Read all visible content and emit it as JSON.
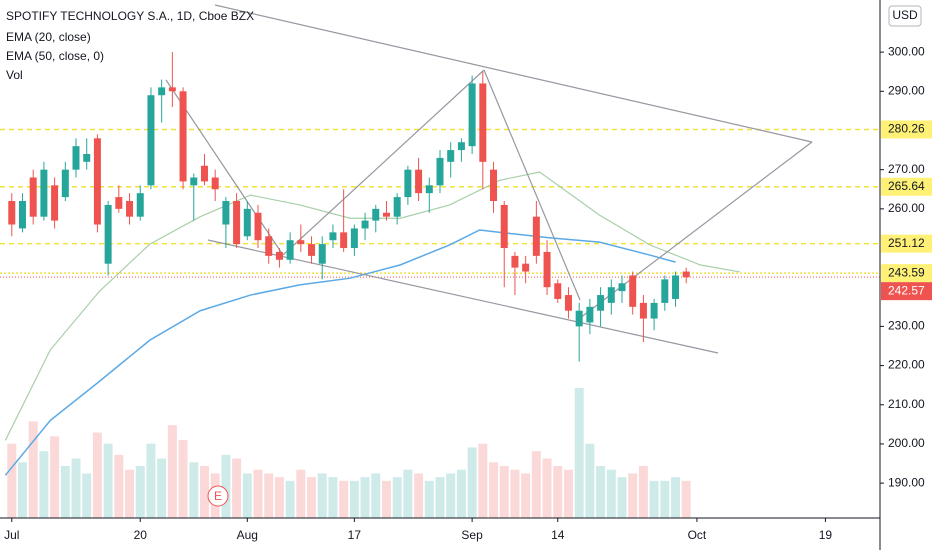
{
  "chart_data": {
    "type": "candlestick",
    "title": "SPOTIFY TECHNOLOGY S.A., 1D, Cboe BZX",
    "currency": "USD",
    "x": [
      0,
      1,
      2,
      3,
      4,
      5,
      6,
      7,
      8,
      9,
      10,
      11,
      12,
      13,
      14,
      15,
      16,
      17,
      18,
      19,
      20,
      21,
      22,
      23,
      24,
      25,
      26,
      27,
      28,
      29,
      30,
      31,
      32,
      33,
      34,
      35,
      36,
      37,
      38,
      39,
      40,
      41,
      42,
      43,
      44,
      45,
      46,
      47,
      48,
      49,
      50,
      51,
      52,
      53,
      54,
      55,
      56,
      57,
      58,
      59,
      60,
      61,
      62,
      63
    ],
    "open": [
      262,
      255,
      268,
      258,
      266,
      263,
      270,
      272,
      278,
      246,
      263,
      262,
      258,
      266,
      289,
      291,
      290,
      266,
      271,
      268,
      256,
      262,
      253,
      259,
      253,
      249,
      247,
      252,
      251,
      246,
      252,
      254,
      250,
      255,
      257,
      259,
      258,
      263,
      270,
      264,
      266,
      272,
      275,
      276,
      292,
      270,
      261,
      248,
      246,
      258,
      249,
      241,
      238,
      230,
      231,
      234,
      236,
      239,
      243,
      236,
      232,
      236,
      237,
      244
    ],
    "high": [
      264,
      264,
      270,
      272,
      268,
      272,
      278,
      278,
      279,
      262,
      266,
      264,
      266,
      291,
      293,
      300,
      291,
      269,
      274,
      270,
      263,
      264,
      262,
      261,
      255,
      250,
      254,
      256,
      253,
      253,
      256,
      265,
      256,
      259,
      261,
      262,
      264,
      271,
      273,
      268,
      275,
      277,
      278,
      294,
      295,
      272,
      262,
      249,
      248,
      262,
      252,
      242,
      240,
      236,
      237,
      240,
      242,
      243,
      244,
      238,
      237,
      243,
      244,
      245
    ],
    "low": [
      253,
      254,
      256,
      257,
      255,
      262,
      268,
      270,
      254,
      243,
      259,
      256,
      257,
      265,
      282,
      286,
      265,
      257,
      266,
      262,
      250,
      250,
      252,
      250,
      246,
      245,
      246,
      249,
      246,
      242,
      250,
      249,
      248,
      252,
      254,
      257,
      256,
      261,
      262,
      259,
      264,
      268,
      272,
      274,
      265,
      259,
      240,
      238,
      241,
      246,
      238,
      236,
      232,
      221,
      228,
      230,
      233,
      236,
      233,
      226,
      229,
      234,
      235,
      241
    ],
    "close": [
      256,
      262,
      258,
      270,
      257,
      270,
      276,
      274,
      256,
      261,
      260,
      258,
      264,
      289,
      291,
      290,
      267,
      268,
      267,
      265,
      262,
      251,
      260,
      252,
      248,
      247,
      252,
      251,
      248,
      251,
      254,
      250,
      255,
      257,
      260,
      258,
      263,
      270,
      264,
      266,
      273,
      275,
      277,
      292,
      272,
      262,
      250,
      245,
      244,
      248,
      240,
      237,
      234,
      234,
      235,
      238,
      240,
      241,
      235,
      232,
      236,
      242,
      243,
      242.57
    ],
    "up_color": "#26a69a",
    "down_color": "#ef5350",
    "volume": {
      "name": "Vol",
      "values": [
        2.0,
        1.5,
        2.6,
        1.8,
        2.2,
        1.4,
        1.6,
        1.2,
        2.3,
        2.0,
        1.7,
        1.3,
        1.4,
        2.0,
        1.6,
        2.5,
        2.1,
        1.5,
        1.4,
        1.2,
        1.7,
        1.6,
        1.2,
        1.3,
        1.2,
        1.1,
        1.0,
        1.3,
        1.1,
        1.2,
        1.1,
        1.0,
        1.0,
        1.1,
        1.2,
        1.0,
        1.1,
        1.3,
        1.2,
        1.0,
        1.1,
        1.2,
        1.3,
        1.9,
        2.0,
        1.5,
        1.4,
        1.3,
        1.2,
        1.8,
        1.6,
        1.4,
        1.3,
        3.5,
        2.0,
        1.4,
        1.3,
        1.1,
        1.2,
        1.4,
        1.0,
        1.0,
        1.1,
        1.0
      ]
    },
    "series": [
      {
        "name": "EMA (20, close)",
        "color": "#a8cfa9",
        "x": [
          -0.6,
          3.6,
          8.2,
          12.9,
          17.6,
          22.3,
          26.9,
          31.6,
          36.3,
          40.9,
          45.6,
          49.3,
          54.9,
          59.6,
          64.3,
          68
        ],
        "values": [
          200.9,
          224,
          239,
          251,
          258,
          263.5,
          261,
          257.6,
          257.6,
          261,
          267.3,
          269.4,
          258.4,
          250.8,
          245.7,
          243.9
        ]
      },
      {
        "name": "EMA (50, close, 0)",
        "color": "#5aa9e6",
        "x": [
          -0.6,
          3.6,
          8.2,
          12.9,
          17.6,
          22.3,
          26.9,
          31.6,
          36.3,
          40.9,
          43.7,
          45.6,
          50.3,
          54.9,
          59.6,
          62
        ],
        "values": [
          192,
          206,
          216,
          226.5,
          234,
          238,
          240.6,
          242.3,
          245.7,
          250.8,
          254.6,
          254,
          252.6,
          251.5,
          248.2,
          246.4
        ]
      }
    ],
    "levels": [
      280.26,
      265.64,
      251.12,
      243.59
    ],
    "level_color": "#f2e23a",
    "last_price": 242.57,
    "last_color": "#ef5350",
    "earnings_marker": "E",
    "xlim": [
      -1.1,
      81.1
    ],
    "ylim": [
      181.1,
      313.3
    ],
    "xticks": [
      {
        "value": 0,
        "label": "Jul"
      },
      {
        "value": 12,
        "label": "20"
      },
      {
        "value": 22,
        "label": "Aug"
      },
      {
        "value": 32,
        "label": "17"
      },
      {
        "value": 43,
        "label": "Sep"
      },
      {
        "value": 51,
        "label": "14"
      },
      {
        "value": 64,
        "label": "Oct"
      },
      {
        "value": 76,
        "label": "19"
      }
    ],
    "yticks": [
      {
        "value": 300,
        "label": "300.00"
      },
      {
        "value": 290,
        "label": "290.00"
      },
      {
        "value": 270,
        "label": "270.00"
      },
      {
        "value": 260,
        "label": "260.00"
      },
      {
        "value": 230,
        "label": "230.00"
      },
      {
        "value": 220,
        "label": "220.00"
      },
      {
        "value": 210,
        "label": "210.00"
      },
      {
        "value": 200,
        "label": "200.00"
      },
      {
        "value": 190,
        "label": "190.00"
      }
    ]
  }
}
